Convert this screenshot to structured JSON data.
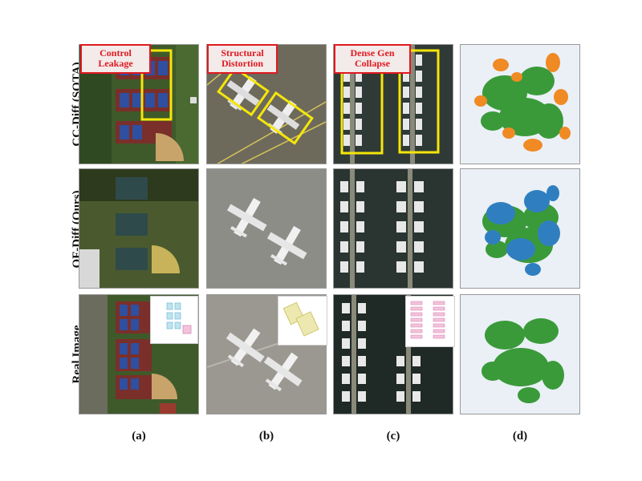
{
  "rows": [
    {
      "label": "CC-Diff (SOTA)"
    },
    {
      "label": "OF-Diff (Ours)"
    },
    {
      "label": "Real Image"
    }
  ],
  "columns": [
    {
      "label": "(a)"
    },
    {
      "label": "(b)"
    },
    {
      "label": "(c)"
    },
    {
      "label": "(d)"
    }
  ],
  "callouts": {
    "a": "Control\nLeakage",
    "b": "Structural\nDistortion",
    "c": "Dense Gen\nCollapse"
  },
  "colors": {
    "callout_red": "#e0191f",
    "highlight_yellow": "#f5e60a",
    "tsne_green": "#3a9a3a",
    "tsne_orange": "#f08a24",
    "tsne_blue": "#2f7fc0",
    "tsne_bg": "#eaf0f6"
  },
  "icons": [
    "tennis-court-icon",
    "baseball-field-icon",
    "airplane-icon",
    "boat-icon",
    "layout-mask-icon",
    "tsne-plot-icon"
  ]
}
